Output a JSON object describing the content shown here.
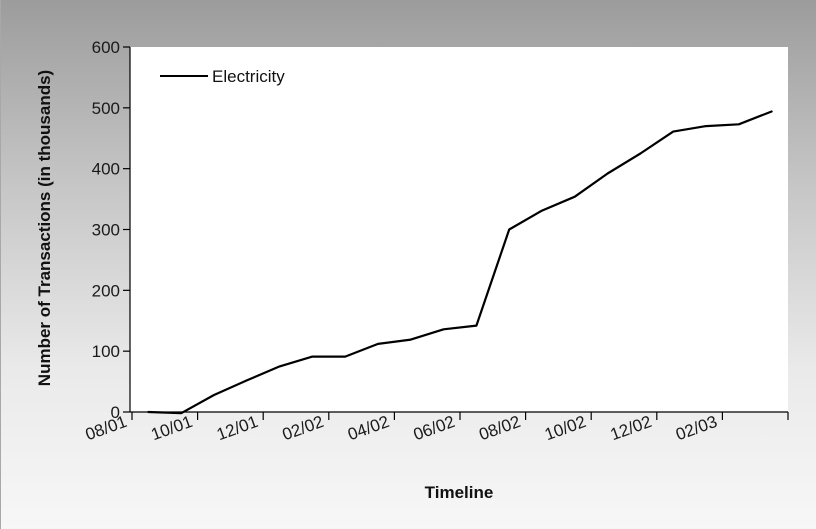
{
  "chart_data": {
    "type": "line",
    "title": "",
    "xlabel": "Timeline",
    "ylabel": "Number of Transactions (in thousands)",
    "ylim": [
      0,
      600
    ],
    "yticks": [
      0,
      100,
      200,
      300,
      400,
      500,
      600
    ],
    "x_tick_labels": [
      "08/01",
      "10/01",
      "12/01",
      "02/02",
      "04/02",
      "06/02",
      "08/02",
      "10/02",
      "12/02",
      "02/03"
    ],
    "legend": {
      "position": "top-left",
      "entries": [
        "Electricity"
      ]
    },
    "grid": false,
    "series": [
      {
        "name": "Electricity",
        "color": "#000000",
        "x": [
          "2001-08",
          "2001-09",
          "2001-10",
          "2001-11",
          "2001-12",
          "2002-01",
          "2002-02",
          "2002-03",
          "2002-04",
          "2002-05",
          "2002-06",
          "2002-07",
          "2002-08",
          "2002-09",
          "2002-10",
          "2002-11",
          "2002-12",
          "2003-01",
          "2003-02",
          "2003-03"
        ],
        "values": [
          0,
          -2,
          28,
          52,
          75,
          91,
          91,
          112,
          119,
          136,
          142,
          300,
          331,
          354,
          392,
          425,
          461,
          470,
          473,
          494
        ]
      }
    ]
  }
}
